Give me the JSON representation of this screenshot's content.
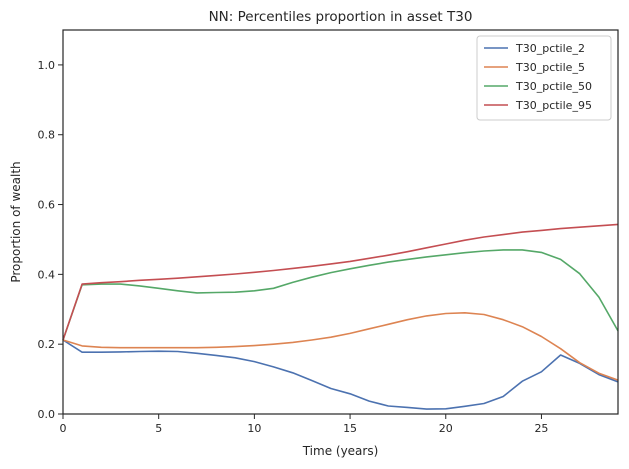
{
  "chart_data": {
    "type": "line",
    "title": "NN: Percentiles proportion in asset T30",
    "xlabel": "Time (years)",
    "ylabel": "Proportion of wealth",
    "xlim": [
      0,
      29
    ],
    "ylim": [
      0,
      1.1
    ],
    "xticks": [
      0,
      5,
      10,
      15,
      20,
      25
    ],
    "yticks": [
      0.0,
      0.2,
      0.4,
      0.6,
      0.8,
      1.0
    ],
    "xtick_labels": [
      "0",
      "5",
      "10",
      "15",
      "20",
      "25"
    ],
    "ytick_labels": [
      "0.0",
      "0.2",
      "0.4",
      "0.6",
      "0.8",
      "1.0"
    ],
    "grid": false,
    "legend_position": "top-right",
    "x": [
      0,
      1,
      2,
      3,
      4,
      5,
      6,
      7,
      8,
      9,
      10,
      11,
      12,
      13,
      14,
      15,
      16,
      17,
      18,
      19,
      20,
      21,
      22,
      23,
      24,
      25,
      26,
      27,
      28,
      29
    ],
    "series": [
      {
        "name": "T30_pctile_2",
        "color": "#4c72b0",
        "values": [
          0.212,
          0.177,
          0.177,
          0.178,
          0.179,
          0.18,
          0.179,
          0.174,
          0.168,
          0.161,
          0.15,
          0.135,
          0.118,
          0.096,
          0.073,
          0.058,
          0.037,
          0.023,
          0.019,
          0.014,
          0.015,
          0.022,
          0.03,
          0.05,
          0.094,
          0.121,
          0.169,
          0.145,
          0.113,
          0.092
        ]
      },
      {
        "name": "T30_pctile_5",
        "color": "#dd8452",
        "values": [
          0.212,
          0.195,
          0.191,
          0.19,
          0.19,
          0.19,
          0.19,
          0.19,
          0.191,
          0.193,
          0.196,
          0.2,
          0.205,
          0.212,
          0.22,
          0.231,
          0.244,
          0.257,
          0.27,
          0.281,
          0.288,
          0.29,
          0.285,
          0.27,
          0.25,
          0.222,
          0.187,
          0.147,
          0.117,
          0.097
        ]
      },
      {
        "name": "T30_pctile_50",
        "color": "#55a868",
        "values": [
          0.212,
          0.37,
          0.372,
          0.372,
          0.367,
          0.36,
          0.353,
          0.347,
          0.348,
          0.349,
          0.353,
          0.36,
          0.377,
          0.392,
          0.405,
          0.416,
          0.426,
          0.435,
          0.443,
          0.45,
          0.456,
          0.462,
          0.467,
          0.47,
          0.47,
          0.463,
          0.443,
          0.402,
          0.335,
          0.238
        ]
      },
      {
        "name": "T30_pctile_95",
        "color": "#c44e52",
        "values": [
          0.212,
          0.372,
          0.376,
          0.379,
          0.383,
          0.386,
          0.389,
          0.393,
          0.397,
          0.401,
          0.406,
          0.411,
          0.417,
          0.423,
          0.43,
          0.437,
          0.446,
          0.455,
          0.465,
          0.476,
          0.487,
          0.498,
          0.507,
          0.514,
          0.521,
          0.526,
          0.531,
          0.535,
          0.539,
          0.543
        ]
      }
    ]
  }
}
